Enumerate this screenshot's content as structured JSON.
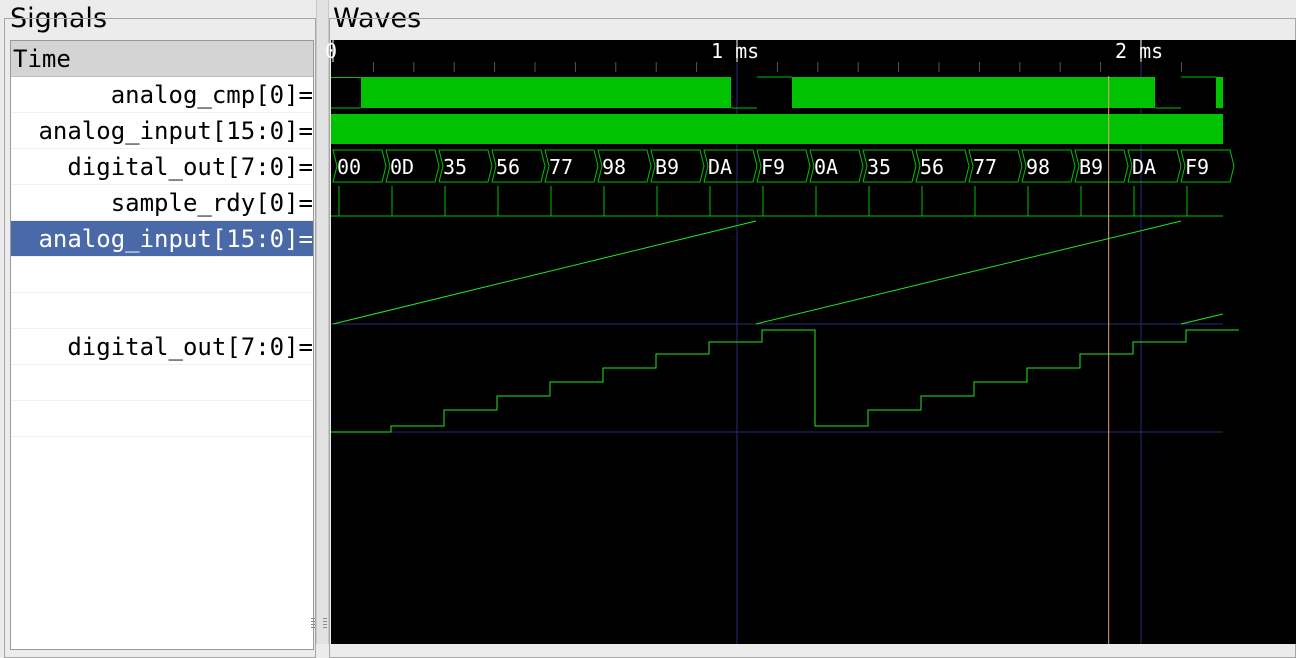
{
  "panels": {
    "signals_title": "Signals",
    "waves_title": "Waves"
  },
  "signals": {
    "header": "Time",
    "rows": [
      "analog_cmp[0]=",
      "analog_input[15:0]=",
      "digital_out[7:0]=",
      "sample_rdy[0]=",
      "analog_input[15:0]=",
      "",
      "",
      "digital_out[7:0]=",
      "",
      ""
    ]
  },
  "timeline": {
    "ticks": [
      {
        "label": "0",
        "time_ms": 0
      },
      {
        "label": "1 ms",
        "time_ms": 1
      },
      {
        "label": "2 ms",
        "time_ms": 2
      }
    ],
    "cursor_time_ms": 1.92,
    "end_time_ms": 2.2
  },
  "digital_out_values": [
    "00",
    "0D",
    "35",
    "56",
    "77",
    "98",
    "B9",
    "DA",
    "F9",
    "0A",
    "35",
    "56",
    "77",
    "98",
    "B9",
    "DA",
    "F9"
  ],
  "colors": {
    "wave": "#00c200",
    "analog": "#22e822",
    "cursor": "#e8a070",
    "selected": "#4a69a9",
    "grid": "#262a7a"
  }
}
